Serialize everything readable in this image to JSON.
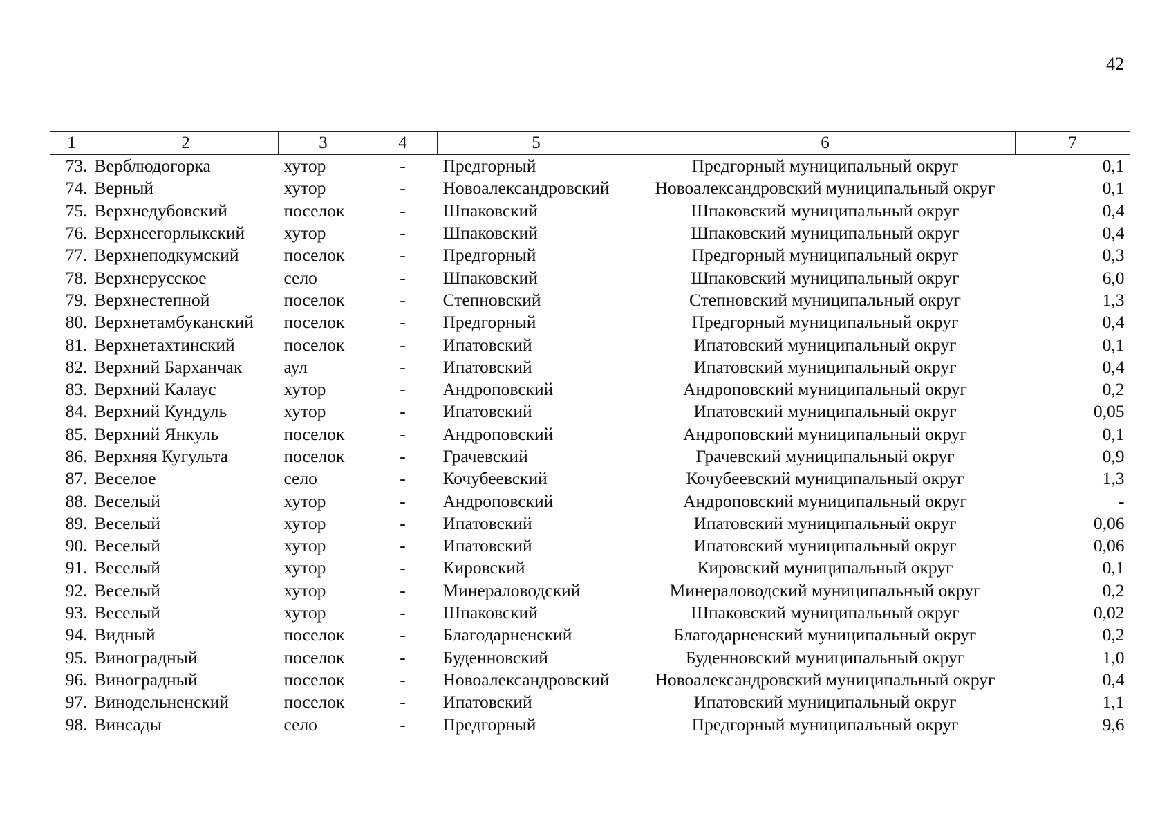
{
  "page_number": "42",
  "columns": [
    "1",
    "2",
    "3",
    "4",
    "5",
    "6",
    "7"
  ],
  "rows": [
    {
      "num": "73.",
      "name": "Верблюдогорка",
      "type": "хутор",
      "c4": "-",
      "district": "Предгорный",
      "okrug": "Предгорный муниципальный округ",
      "value": "0,1"
    },
    {
      "num": "74.",
      "name": "Верный",
      "type": "хутор",
      "c4": "-",
      "district": "Новоалександровский",
      "okrug": "Новоалександровский муниципальный округ",
      "value": "0,1"
    },
    {
      "num": "75.",
      "name": "Верхнедубовский",
      "type": "поселок",
      "c4": "-",
      "district": "Шпаковский",
      "okrug": "Шпаковский муниципальный округ",
      "value": "0,4"
    },
    {
      "num": "76.",
      "name": "Верхнеегорлыкский",
      "type": "хутор",
      "c4": "-",
      "district": "Шпаковский",
      "okrug": "Шпаковский муниципальный округ",
      "value": "0,4"
    },
    {
      "num": "77.",
      "name": "Верхнеподкумский",
      "type": "поселок",
      "c4": "-",
      "district": "Предгорный",
      "okrug": "Предгорный муниципальный округ",
      "value": "0,3"
    },
    {
      "num": "78.",
      "name": "Верхнерусское",
      "type": "село",
      "c4": "-",
      "district": "Шпаковский",
      "okrug": "Шпаковский муниципальный округ",
      "value": "6,0"
    },
    {
      "num": "79.",
      "name": "Верхнестепной",
      "type": "поселок",
      "c4": "-",
      "district": "Степновский",
      "okrug": "Степновский муниципальный округ",
      "value": "1,3"
    },
    {
      "num": "80.",
      "name": "Верхнетамбуканский",
      "type": "поселок",
      "c4": "-",
      "district": "Предгорный",
      "okrug": "Предгорный муниципальный округ",
      "value": "0,4"
    },
    {
      "num": "81.",
      "name": "Верхнетахтинский",
      "type": "поселок",
      "c4": "-",
      "district": "Ипатовский",
      "okrug": "Ипатовский муниципальный округ",
      "value": "0,1"
    },
    {
      "num": "82.",
      "name": "Верхний Барханчак",
      "type": "аул",
      "c4": "-",
      "district": "Ипатовский",
      "okrug": "Ипатовский муниципальный округ",
      "value": "0,4"
    },
    {
      "num": "83.",
      "name": "Верхний Калаус",
      "type": "хутор",
      "c4": "-",
      "district": "Андроповский",
      "okrug": "Андроповский муниципальный округ",
      "value": "0,2"
    },
    {
      "num": "84.",
      "name": "Верхний Кундуль",
      "type": "хутор",
      "c4": "-",
      "district": "Ипатовский",
      "okrug": "Ипатовский муниципальный округ",
      "value": "0,05"
    },
    {
      "num": "85.",
      "name": "Верхний Янкуль",
      "type": "поселок",
      "c4": "-",
      "district": "Андроповский",
      "okrug": "Андроповский муниципальный округ",
      "value": "0,1"
    },
    {
      "num": "86.",
      "name": "Верхняя Кугульта",
      "type": "поселок",
      "c4": "-",
      "district": "Грачевский",
      "okrug": "Грачевский муниципальный округ",
      "value": "0,9"
    },
    {
      "num": "87.",
      "name": "Веселое",
      "type": "село",
      "c4": "-",
      "district": "Кочубеевский",
      "okrug": "Кочубеевский муниципальный округ",
      "value": "1,3"
    },
    {
      "num": "88.",
      "name": "Веселый",
      "type": "хутор",
      "c4": "-",
      "district": "Андроповский",
      "okrug": "Андроповский муниципальный округ",
      "value": "-"
    },
    {
      "num": "89.",
      "name": "Веселый",
      "type": "хутор",
      "c4": "-",
      "district": "Ипатовский",
      "okrug": "Ипатовский муниципальный округ",
      "value": "0,06"
    },
    {
      "num": "90.",
      "name": "Веселый",
      "type": "хутор",
      "c4": "-",
      "district": "Ипатовский",
      "okrug": "Ипатовский муниципальный округ",
      "value": "0,06"
    },
    {
      "num": "91.",
      "name": "Веселый",
      "type": "хутор",
      "c4": "-",
      "district": "Кировский",
      "okrug": "Кировский муниципальный округ",
      "value": "0,1"
    },
    {
      "num": "92.",
      "name": "Веселый",
      "type": "хутор",
      "c4": "-",
      "district": "Минераловодский",
      "okrug": "Минераловодский муниципальный округ",
      "value": "0,2"
    },
    {
      "num": "93.",
      "name": "Веселый",
      "type": "хутор",
      "c4": "-",
      "district": "Шпаковский",
      "okrug": "Шпаковский муниципальный округ",
      "value": "0,02"
    },
    {
      "num": "94.",
      "name": "Видный",
      "type": "поселок",
      "c4": "-",
      "district": "Благодарненский",
      "okrug": "Благодарненский муниципальный округ",
      "value": "0,2"
    },
    {
      "num": "95.",
      "name": "Виноградный",
      "type": "поселок",
      "c4": "-",
      "district": "Буденновский",
      "okrug": "Буденновский муниципальный округ",
      "value": "1,0"
    },
    {
      "num": "96.",
      "name": "Виноградный",
      "type": "поселок",
      "c4": "-",
      "district": "Новоалександровский",
      "okrug": "Новоалександровский муниципальный округ",
      "value": "0,4"
    },
    {
      "num": "97.",
      "name": "Винодельненский",
      "type": "поселок",
      "c4": "-",
      "district": "Ипатовский",
      "okrug": "Ипатовский муниципальный округ",
      "value": "1,1"
    },
    {
      "num": "98.",
      "name": "Винсады",
      "type": "село",
      "c4": "-",
      "district": "Предгорный",
      "okrug": "Предгорный муниципальный округ",
      "value": "9,6"
    }
  ]
}
